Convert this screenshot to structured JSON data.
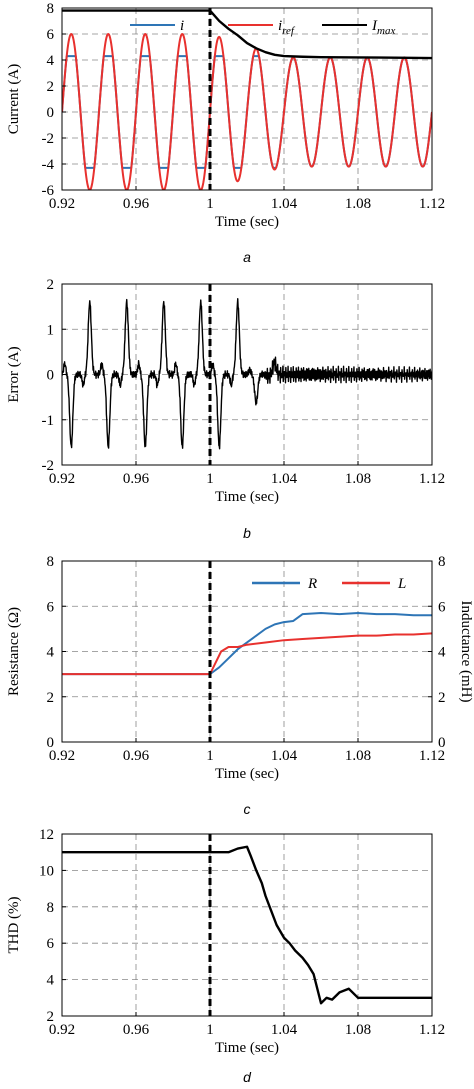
{
  "chart_data": [
    {
      "panel": "a",
      "caption": "a",
      "type": "line",
      "xlabel": "Time (sec)",
      "ylabel": "Current (A)",
      "xlim": [
        0.92,
        1.12
      ],
      "ylim": [
        -6,
        8
      ],
      "x_ticks": [
        "0.92",
        "0.96",
        "1",
        "1.04",
        "1.08",
        "1.12"
      ],
      "y_ticks": [
        "-6",
        "-4",
        "-2",
        "0",
        "2",
        "4",
        "6",
        "8"
      ],
      "grid": true,
      "legend_position": "top",
      "vline_x": 1.0,
      "series": [
        {
          "name": "i",
          "color": "#2e75b6",
          "description": "50 Hz current, clipped at about ±4.3 A before 1 s, tracks reference after about 1.04 s",
          "x": [
            0.92,
            0.925,
            0.93,
            0.935,
            0.94,
            0.945,
            0.95,
            0.955,
            0.96,
            0.965,
            0.97,
            0.975,
            0.98,
            0.985,
            0.99,
            0.995,
            1.0,
            1.005,
            1.01,
            1.015,
            1.02,
            1.025,
            1.03,
            1.035,
            1.04,
            1.045,
            1.05,
            1.055,
            1.06,
            1.065,
            1.07,
            1.075,
            1.08,
            1.085,
            1.09,
            1.095,
            1.1,
            1.105,
            1.11,
            1.115,
            1.12
          ],
          "y": [
            0,
            4.3,
            0,
            -4.3,
            0,
            4.3,
            0,
            -4.3,
            0,
            4.3,
            0,
            -4.3,
            0,
            4.3,
            0,
            -4.3,
            0,
            4.3,
            0,
            -4.3,
            0,
            4.25,
            0,
            -4.2,
            0,
            4.2,
            0,
            -4.2,
            0,
            4.2,
            0,
            -4.2,
            0,
            4.2,
            0,
            -4.2,
            0,
            4.2,
            0,
            -4.2,
            0
          ]
        },
        {
          "name": "i_ref",
          "color": "#e8312e",
          "description": "50 Hz reference, amplitude 6 A before 1 s, about 4.2 A after 1.04 s",
          "x": [
            0.92,
            0.925,
            0.93,
            0.935,
            0.94,
            0.945,
            0.95,
            0.955,
            0.96,
            0.965,
            0.97,
            0.975,
            0.98,
            0.985,
            0.99,
            0.995,
            1.0,
            1.005,
            1.01,
            1.015,
            1.02,
            1.025,
            1.03,
            1.035,
            1.04,
            1.045,
            1.05,
            1.055,
            1.06,
            1.065,
            1.07,
            1.075,
            1.08,
            1.085,
            1.09,
            1.095,
            1.1,
            1.105,
            1.11,
            1.115,
            1.12
          ],
          "y": [
            0,
            6,
            0,
            -6,
            0,
            6,
            0,
            -6,
            0,
            6,
            0,
            -6,
            0,
            6,
            0,
            -6,
            0,
            5.5,
            0,
            -5,
            0,
            4.6,
            0,
            -4.3,
            0,
            4.2,
            0,
            -4.2,
            0,
            4.2,
            0,
            -4.2,
            0,
            4.2,
            0,
            -4.2,
            0,
            4.2,
            0,
            -4.2,
            0
          ]
        },
        {
          "name": "I_max",
          "color": "#000000",
          "description": "current limit, 7.8 A until 1 s, then decays to about 4.2 A",
          "x": [
            0.92,
            1.0,
            1.005,
            1.01,
            1.015,
            1.02,
            1.025,
            1.03,
            1.035,
            1.04,
            1.05,
            1.06,
            1.08,
            1.1,
            1.12
          ],
          "y": [
            7.8,
            7.8,
            7.0,
            6.4,
            5.9,
            5.3,
            4.9,
            4.6,
            4.4,
            4.3,
            4.25,
            4.22,
            4.2,
            4.18,
            4.15
          ]
        }
      ]
    },
    {
      "panel": "b",
      "caption": "b",
      "type": "line",
      "xlabel": "Time (sec)",
      "ylabel": "Error (A)",
      "xlim": [
        0.92,
        1.12
      ],
      "ylim": [
        -2,
        2
      ],
      "x_ticks": [
        "0.92",
        "0.96",
        "1",
        "1.04",
        "1.08",
        "1.12"
      ],
      "y_ticks": [
        "-2",
        "-1",
        "0",
        "1",
        "2"
      ],
      "grid": true,
      "vline_x": 1.0,
      "series": [
        {
          "name": "error",
          "color": "#000000",
          "description": "tracking error with spikes of about ±1.6 A every half cycle before 1.02 s, decaying to small noise",
          "x": [
            0.92,
            0.923,
            0.925,
            0.927,
            0.93,
            0.933,
            0.935,
            0.937,
            0.94,
            0.943,
            0.945,
            0.947,
            0.95,
            0.953,
            0.955,
            0.957,
            0.96,
            0.963,
            0.965,
            0.967,
            0.97,
            0.973,
            0.975,
            0.977,
            0.98,
            0.983,
            0.985,
            0.987,
            0.99,
            0.993,
            0.995,
            0.997,
            1.0,
            1.003,
            1.005,
            1.007,
            1.01,
            1.013,
            1.015,
            1.017,
            1.02,
            1.023,
            1.025,
            1.027,
            1.03,
            1.033,
            1.035,
            1.04,
            1.05,
            1.06,
            1.07,
            1.08,
            1.09,
            1.1,
            1.11,
            1.12
          ],
          "y": [
            0,
            -0.3,
            -1.6,
            -0.3,
            0,
            0.3,
            1.6,
            0.3,
            0,
            -0.3,
            -1.6,
            -0.3,
            0,
            0.3,
            1.6,
            0.3,
            0,
            -0.3,
            -1.6,
            -0.3,
            0,
            0.3,
            1.6,
            0.3,
            0,
            -0.3,
            -1.6,
            -0.3,
            0,
            0.3,
            1.6,
            0.3,
            0,
            -0.3,
            -1.6,
            -0.3,
            0,
            0.3,
            1.6,
            0.3,
            0,
            -0.2,
            -0.6,
            -0.1,
            0,
            0.2,
            0.7,
            0.1,
            -0.1,
            0.1,
            -0.1,
            0.05,
            -0.1,
            0.05,
            -0.05,
            0
          ]
        }
      ]
    },
    {
      "panel": "c",
      "caption": "c",
      "type": "line",
      "xlabel": "Time (sec)",
      "ylabel": "Resistance (Ω)",
      "ylabel_right": "Inductance (mH)",
      "xlim": [
        0.92,
        1.12
      ],
      "ylim": [
        0,
        8
      ],
      "x_ticks": [
        "0.92",
        "0.96",
        "1",
        "1.04",
        "1.08",
        "1.12"
      ],
      "y_ticks": [
        "0",
        "2",
        "4",
        "6",
        "8"
      ],
      "y_ticks_right": [
        "0",
        "2",
        "4",
        "6",
        "8"
      ],
      "grid": true,
      "legend_position": "top-right",
      "vline_x": 1.0,
      "series": [
        {
          "name": "R",
          "color": "#2e75b6",
          "x": [
            0.92,
            1.0,
            1.005,
            1.01,
            1.015,
            1.02,
            1.025,
            1.03,
            1.035,
            1.04,
            1.045,
            1.05,
            1.06,
            1.07,
            1.08,
            1.09,
            1.1,
            1.11,
            1.12
          ],
          "y": [
            3.0,
            3.0,
            3.3,
            3.7,
            4.1,
            4.4,
            4.7,
            5.0,
            5.2,
            5.3,
            5.35,
            5.65,
            5.7,
            5.65,
            5.7,
            5.65,
            5.65,
            5.6,
            5.6
          ]
        },
        {
          "name": "L",
          "color": "#e8312e",
          "x": [
            0.92,
            1.0,
            1.003,
            1.006,
            1.01,
            1.015,
            1.02,
            1.03,
            1.04,
            1.05,
            1.06,
            1.07,
            1.08,
            1.09,
            1.1,
            1.11,
            1.12
          ],
          "y": [
            3.0,
            3.0,
            3.5,
            4.0,
            4.2,
            4.2,
            4.3,
            4.4,
            4.5,
            4.55,
            4.6,
            4.65,
            4.7,
            4.7,
            4.75,
            4.75,
            4.8
          ]
        }
      ]
    },
    {
      "panel": "d",
      "caption": "d",
      "type": "line",
      "xlabel": "Time (sec)",
      "ylabel": "THD (%)",
      "xlim": [
        0.92,
        1.12
      ],
      "ylim": [
        2,
        12
      ],
      "x_ticks": [
        "0.92",
        "0.96",
        "1",
        "1.04",
        "1.08",
        "1.12"
      ],
      "y_ticks": [
        "2",
        "4",
        "6",
        "8",
        "10",
        "12"
      ],
      "grid": true,
      "vline_x": 1.0,
      "series": [
        {
          "name": "THD",
          "color": "#000000",
          "x": [
            0.92,
            0.96,
            1.0,
            1.01,
            1.015,
            1.02,
            1.022,
            1.025,
            1.028,
            1.03,
            1.033,
            1.036,
            1.04,
            1.043,
            1.046,
            1.05,
            1.053,
            1.056,
            1.06,
            1.063,
            1.066,
            1.07,
            1.075,
            1.08,
            1.09,
            1.1,
            1.12
          ],
          "y": [
            11.0,
            11.0,
            11.0,
            11.0,
            11.2,
            11.3,
            10.8,
            10.0,
            9.3,
            8.6,
            7.8,
            7.0,
            6.3,
            6.0,
            5.6,
            5.2,
            4.8,
            4.3,
            2.7,
            3.0,
            2.9,
            3.3,
            3.5,
            3.0,
            3.0,
            3.0,
            3.0
          ]
        }
      ]
    }
  ]
}
